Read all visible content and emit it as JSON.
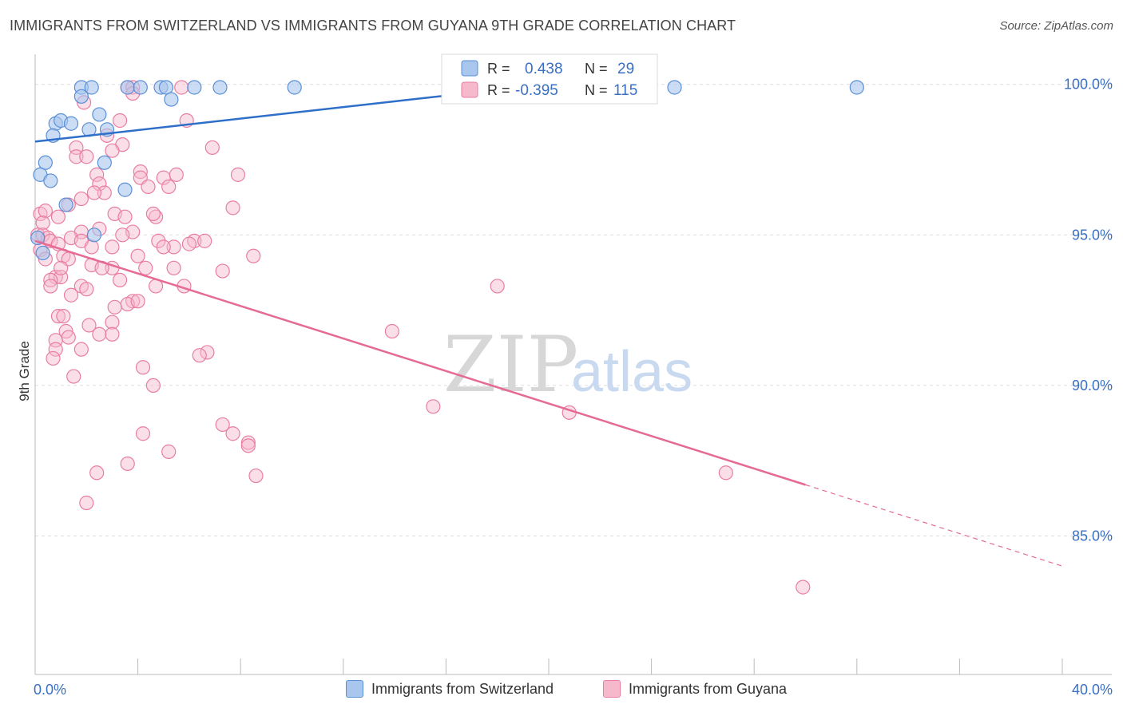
{
  "title": "IMMIGRANTS FROM SWITZERLAND VS IMMIGRANTS FROM GUYANA 9TH GRADE CORRELATION CHART",
  "source": "Source: ZipAtlas.com",
  "watermark": {
    "zip": "ZIP",
    "atlas": "atlas"
  },
  "legend_stats": {
    "r_label": "R =",
    "n_label": "N =",
    "series": [
      {
        "r": "0.438",
        "n": "29"
      },
      {
        "r": "-0.395",
        "n": "115"
      }
    ]
  },
  "colors": {
    "switzerland_fill": "#a9c6ee",
    "switzerland_stroke": "#5b8fd6",
    "switzerland_line": "#2e6fc9",
    "guyana_fill": "#f6b8cb",
    "guyana_stroke": "#e87ea1",
    "guyana_line": "#e56a94",
    "axis_value": "#3a6fc4"
  },
  "chart_data": {
    "type": "scatter",
    "title": "IMMIGRANTS FROM SWITZERLAND VS IMMIGRANTS FROM GUYANA 9TH GRADE CORRELATION CHART",
    "xlabel": "",
    "ylabel": "9th Grade",
    "xlim": [
      0,
      40
    ],
    "ylim": [
      80.4,
      101.0
    ],
    "x_tick_labels": [
      {
        "value": 0,
        "label": "0.0%"
      },
      {
        "value": 40,
        "label": "40.0%"
      }
    ],
    "y_tick_labels": [
      {
        "value": 100,
        "label": "100.0%"
      },
      {
        "value": 95,
        "label": "95.0%"
      },
      {
        "value": 90,
        "label": "90.0%"
      },
      {
        "value": 85,
        "label": "85.0%"
      }
    ],
    "series": [
      {
        "name": "Immigrants from Switzerland",
        "r": 0.438,
        "n": 29,
        "trend": {
          "x0": 0,
          "y0": 98.1,
          "x1": 19.9,
          "y1": 100.0,
          "dash_to_x": null
        },
        "points": [
          [
            1.8,
            99.9
          ],
          [
            2.2,
            99.9
          ],
          [
            3.6,
            99.9
          ],
          [
            4.1,
            99.9
          ],
          [
            4.9,
            99.9
          ],
          [
            5.1,
            99.9
          ],
          [
            6.2,
            99.9
          ],
          [
            7.2,
            99.9
          ],
          [
            10.1,
            99.9
          ],
          [
            24.9,
            99.9
          ],
          [
            32.0,
            99.9
          ],
          [
            1.8,
            99.6
          ],
          [
            5.3,
            99.5
          ],
          [
            2.5,
            99.0
          ],
          [
            0.8,
            98.7
          ],
          [
            1.0,
            98.8
          ],
          [
            1.4,
            98.7
          ],
          [
            2.1,
            98.5
          ],
          [
            2.8,
            98.5
          ],
          [
            0.7,
            98.3
          ],
          [
            0.4,
            97.4
          ],
          [
            2.7,
            97.4
          ],
          [
            0.2,
            97.0
          ],
          [
            0.6,
            96.8
          ],
          [
            3.5,
            96.5
          ],
          [
            1.2,
            96.0
          ],
          [
            0.1,
            94.9
          ],
          [
            2.3,
            95.0
          ],
          [
            0.3,
            94.4
          ]
        ]
      },
      {
        "name": "Immigrants from Guyana",
        "r": -0.395,
        "n": 115,
        "trend": {
          "x0": 0,
          "y0": 94.8,
          "x1": 30.0,
          "y1": 86.7,
          "dash_to_x": 40
        },
        "points": [
          [
            3.6,
            99.9
          ],
          [
            3.8,
            99.9
          ],
          [
            5.7,
            99.9
          ],
          [
            3.8,
            99.7
          ],
          [
            1.9,
            99.4
          ],
          [
            3.3,
            98.8
          ],
          [
            5.9,
            98.8
          ],
          [
            3.4,
            98.0
          ],
          [
            1.6,
            97.9
          ],
          [
            6.9,
            97.9
          ],
          [
            1.6,
            97.6
          ],
          [
            2.0,
            97.6
          ],
          [
            3.0,
            97.8
          ],
          [
            4.1,
            97.1
          ],
          [
            7.9,
            97.0
          ],
          [
            2.4,
            97.0
          ],
          [
            5.0,
            96.9
          ],
          [
            2.5,
            96.7
          ],
          [
            4.1,
            96.9
          ],
          [
            4.4,
            96.6
          ],
          [
            5.2,
            96.6
          ],
          [
            2.7,
            96.4
          ],
          [
            1.8,
            96.2
          ],
          [
            1.3,
            96.0
          ],
          [
            7.7,
            95.9
          ],
          [
            0.2,
            95.7
          ],
          [
            0.4,
            95.8
          ],
          [
            3.1,
            95.7
          ],
          [
            3.5,
            95.6
          ],
          [
            4.7,
            95.6
          ],
          [
            0.3,
            95.4
          ],
          [
            2.5,
            95.2
          ],
          [
            1.8,
            95.1
          ],
          [
            3.8,
            95.1
          ],
          [
            0.1,
            95.0
          ],
          [
            0.3,
            95.0
          ],
          [
            0.5,
            94.9
          ],
          [
            1.4,
            94.9
          ],
          [
            1.8,
            94.8
          ],
          [
            4.8,
            94.8
          ],
          [
            6.2,
            94.8
          ],
          [
            6.6,
            94.8
          ],
          [
            5.4,
            94.6
          ],
          [
            0.6,
            94.8
          ],
          [
            0.9,
            94.7
          ],
          [
            2.2,
            94.6
          ],
          [
            3.0,
            94.6
          ],
          [
            5.0,
            94.6
          ],
          [
            0.2,
            94.5
          ],
          [
            4.0,
            94.3
          ],
          [
            8.5,
            94.3
          ],
          [
            1.1,
            94.3
          ],
          [
            1.3,
            94.2
          ],
          [
            0.4,
            94.2
          ],
          [
            2.2,
            94.0
          ],
          [
            3.0,
            93.9
          ],
          [
            4.3,
            93.9
          ],
          [
            5.4,
            93.9
          ],
          [
            7.3,
            93.8
          ],
          [
            0.8,
            93.6
          ],
          [
            1.0,
            93.6
          ],
          [
            3.3,
            93.5
          ],
          [
            0.6,
            93.5
          ],
          [
            0.6,
            93.3
          ],
          [
            1.8,
            93.3
          ],
          [
            2.0,
            93.2
          ],
          [
            4.7,
            93.3
          ],
          [
            5.8,
            93.3
          ],
          [
            18.0,
            93.3
          ],
          [
            1.4,
            93.0
          ],
          [
            3.8,
            92.8
          ],
          [
            3.6,
            92.7
          ],
          [
            4.0,
            92.8
          ],
          [
            0.9,
            92.3
          ],
          [
            1.1,
            92.3
          ],
          [
            2.1,
            92.0
          ],
          [
            3.0,
            92.1
          ],
          [
            1.2,
            91.8
          ],
          [
            2.5,
            91.7
          ],
          [
            3.0,
            91.7
          ],
          [
            13.9,
            91.8
          ],
          [
            0.8,
            91.5
          ],
          [
            1.3,
            91.6
          ],
          [
            0.8,
            91.2
          ],
          [
            1.8,
            91.2
          ],
          [
            6.7,
            91.1
          ],
          [
            6.4,
            91.0
          ],
          [
            0.7,
            90.9
          ],
          [
            4.2,
            90.6
          ],
          [
            1.5,
            90.3
          ],
          [
            4.6,
            90.0
          ],
          [
            15.5,
            89.3
          ],
          [
            20.8,
            89.1
          ],
          [
            7.3,
            88.7
          ],
          [
            7.7,
            88.4
          ],
          [
            8.3,
            88.1
          ],
          [
            8.3,
            88.0
          ],
          [
            4.2,
            88.4
          ],
          [
            5.2,
            87.8
          ],
          [
            3.6,
            87.4
          ],
          [
            2.4,
            87.1
          ],
          [
            8.6,
            87.0
          ],
          [
            26.9,
            87.1
          ],
          [
            2.0,
            86.1
          ],
          [
            29.9,
            83.3
          ],
          [
            2.3,
            96.4
          ],
          [
            3.4,
            95.0
          ],
          [
            6.0,
            94.7
          ],
          [
            1.0,
            93.9
          ],
          [
            2.6,
            93.9
          ],
          [
            0.9,
            95.6
          ],
          [
            4.6,
            95.7
          ],
          [
            2.8,
            98.3
          ],
          [
            5.5,
            97.0
          ],
          [
            3.1,
            92.6
          ]
        ]
      }
    ]
  },
  "legend_bottom": [
    {
      "label": "Immigrants from Switzerland"
    },
    {
      "label": "Immigrants from Guyana"
    }
  ]
}
